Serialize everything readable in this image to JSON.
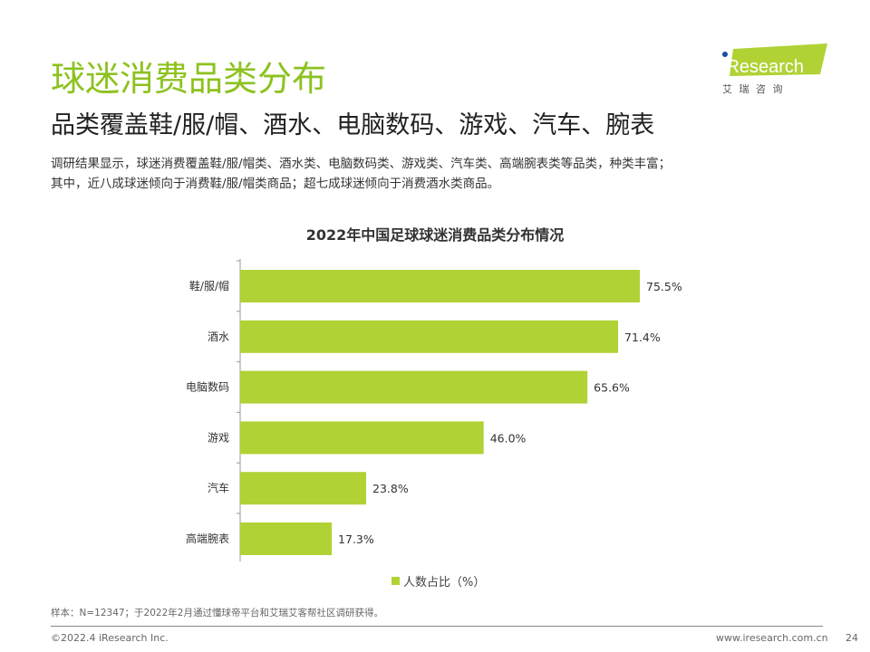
{
  "header": {
    "title": "球迷消费品类分布",
    "subtitle": "品类覆盖鞋/服/帽、酒水、电脑数码、游戏、汽车、腕表",
    "description": [
      "调研结果显示，球迷消费覆盖鞋/服/帽类、酒水类、电脑数码类、游戏类、汽车类、高端腕表类等品类，种类丰富；",
      "其中，近八成球迷倾向于消费鞋/服/帽类商品；超七成球迷倾向于消费酒水类商品。"
    ]
  },
  "logo": {
    "brand": "iResearch",
    "cn": "艾 瑞 咨 询",
    "color": "#b0d235"
  },
  "chart_data": {
    "type": "bar",
    "orientation": "horizontal",
    "title": "2022年中国足球球迷消费品类分布情况",
    "categories": [
      "鞋/服/帽",
      "酒水",
      "电脑数码",
      "游戏",
      "汽车",
      "高端腕表"
    ],
    "series": [
      {
        "name": "人数占比（%）",
        "values": [
          75.5,
          71.4,
          65.6,
          46.0,
          23.8,
          17.3
        ],
        "color": "#b0d235"
      }
    ],
    "value_labels": [
      "75.5%",
      "71.4%",
      "65.6%",
      "46.0%",
      "23.8%",
      "17.3%"
    ],
    "xlim": [
      0,
      100
    ],
    "grid": false,
    "legend": "bottom"
  },
  "footer": {
    "note": "样本：N=12347；于2022年2月通过懂球帝平台和艾瑞艾客帮社区调研获得。",
    "copyright": "©2022.4 iResearch Inc.",
    "url": "www.iresearch.com.cn",
    "page": "24"
  }
}
